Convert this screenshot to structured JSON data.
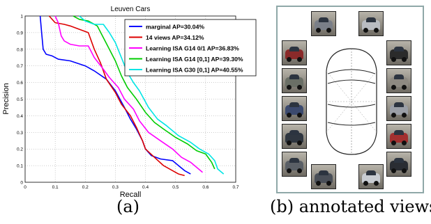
{
  "chart_data": {
    "type": "line",
    "title": "Leuven Cars",
    "xlabel": "Recall",
    "ylabel": "Precision",
    "xlim": [
      0,
      0.7
    ],
    "ylim": [
      0,
      1
    ],
    "xticks": [
      "0",
      "0.1",
      "0.2",
      "0.3",
      "0.4",
      "0.5",
      "0.6",
      "0.7"
    ],
    "yticks": [
      "0",
      "0.1",
      "0.2",
      "0.3",
      "0.4",
      "0.5",
      "0.6",
      "0.7",
      "0.8",
      "0.9",
      "1"
    ],
    "grid": true,
    "legend_position": "top-right",
    "series": [
      {
        "name": "marginal AP=30.04%",
        "color": "#0000ff",
        "points": [
          [
            0.05,
            1
          ],
          [
            0.055,
            0.9
          ],
          [
            0.06,
            0.8
          ],
          [
            0.07,
            0.77
          ],
          [
            0.09,
            0.76
          ],
          [
            0.11,
            0.74
          ],
          [
            0.15,
            0.73
          ],
          [
            0.2,
            0.7
          ],
          [
            0.23,
            0.67
          ],
          [
            0.27,
            0.62
          ],
          [
            0.3,
            0.55
          ],
          [
            0.33,
            0.45
          ],
          [
            0.35,
            0.38
          ],
          [
            0.37,
            0.32
          ],
          [
            0.39,
            0.25
          ],
          [
            0.4,
            0.2
          ],
          [
            0.42,
            0.16
          ],
          [
            0.45,
            0.14
          ],
          [
            0.49,
            0.13
          ],
          [
            0.51,
            0.1
          ],
          [
            0.53,
            0.07
          ],
          [
            0.55,
            0.05
          ]
        ]
      },
      {
        "name": "14 views AP=34.12%",
        "color": "#dd0000",
        "points": [
          [
            0.08,
            1
          ],
          [
            0.1,
            0.96
          ],
          [
            0.13,
            0.95
          ],
          [
            0.15,
            0.94
          ],
          [
            0.18,
            0.92
          ],
          [
            0.21,
            0.9
          ],
          [
            0.23,
            0.8
          ],
          [
            0.25,
            0.72
          ],
          [
            0.27,
            0.62
          ],
          [
            0.3,
            0.54
          ],
          [
            0.32,
            0.47
          ],
          [
            0.35,
            0.4
          ],
          [
            0.37,
            0.33
          ],
          [
            0.39,
            0.25
          ],
          [
            0.4,
            0.2
          ],
          [
            0.43,
            0.15
          ],
          [
            0.46,
            0.1
          ],
          [
            0.49,
            0.07
          ],
          [
            0.51,
            0.05
          ],
          [
            0.53,
            0.04
          ]
        ]
      },
      {
        "name": "Learning ISA G14 0/1 AP=36.83%",
        "color": "#ff00ff",
        "points": [
          [
            0.1,
            1
          ],
          [
            0.11,
            0.96
          ],
          [
            0.12,
            0.88
          ],
          [
            0.13,
            0.85
          ],
          [
            0.15,
            0.83
          ],
          [
            0.18,
            0.82
          ],
          [
            0.21,
            0.82
          ],
          [
            0.23,
            0.75
          ],
          [
            0.26,
            0.68
          ],
          [
            0.28,
            0.63
          ],
          [
            0.31,
            0.57
          ],
          [
            0.33,
            0.5
          ],
          [
            0.36,
            0.44
          ],
          [
            0.38,
            0.37
          ],
          [
            0.41,
            0.3
          ],
          [
            0.45,
            0.25
          ],
          [
            0.49,
            0.2
          ],
          [
            0.52,
            0.15
          ],
          [
            0.55,
            0.12
          ],
          [
            0.57,
            0.09
          ],
          [
            0.59,
            0.06
          ]
        ]
      },
      {
        "name": "Learning ISA G14 [0,1] AP=39.30%",
        "color": "#00cc00",
        "points": [
          [
            0.16,
            1
          ],
          [
            0.18,
            0.98
          ],
          [
            0.21,
            0.97
          ],
          [
            0.24,
            0.94
          ],
          [
            0.26,
            0.87
          ],
          [
            0.28,
            0.8
          ],
          [
            0.3,
            0.73
          ],
          [
            0.32,
            0.64
          ],
          [
            0.34,
            0.57
          ],
          [
            0.37,
            0.5
          ],
          [
            0.4,
            0.42
          ],
          [
            0.43,
            0.36
          ],
          [
            0.46,
            0.32
          ],
          [
            0.5,
            0.27
          ],
          [
            0.54,
            0.23
          ],
          [
            0.57,
            0.19
          ],
          [
            0.6,
            0.17
          ],
          [
            0.62,
            0.12
          ],
          [
            0.63,
            0.08
          ]
        ]
      },
      {
        "name": "Learning ISA G30 [0,1] AP=40.55%",
        "color": "#00e5e5",
        "points": [
          [
            0.18,
            1
          ],
          [
            0.2,
            0.97
          ],
          [
            0.23,
            0.95
          ],
          [
            0.26,
            0.95
          ],
          [
            0.28,
            0.9
          ],
          [
            0.3,
            0.84
          ],
          [
            0.32,
            0.75
          ],
          [
            0.34,
            0.66
          ],
          [
            0.36,
            0.6
          ],
          [
            0.38,
            0.55
          ],
          [
            0.41,
            0.45
          ],
          [
            0.44,
            0.38
          ],
          [
            0.47,
            0.34
          ],
          [
            0.51,
            0.28
          ],
          [
            0.55,
            0.24
          ],
          [
            0.58,
            0.2
          ],
          [
            0.61,
            0.17
          ],
          [
            0.63,
            0.13
          ],
          [
            0.64,
            0.08
          ],
          [
            0.66,
            0.05
          ]
        ]
      }
    ]
  },
  "captions": {
    "a": "(a)",
    "b": "(b) annotated views"
  },
  "thumbnail_colors": [
    "#7a7f88",
    "#b9bcc2",
    "#8a2a2a",
    "#2b2b2b",
    "#6a6f66",
    "#8e8a82",
    "#3c4a6e",
    "#9a9ea6",
    "#2f3640",
    "#a33030",
    "#5a5f66",
    "#2a2d33",
    "#4a4f58",
    "#c8ccd2"
  ]
}
